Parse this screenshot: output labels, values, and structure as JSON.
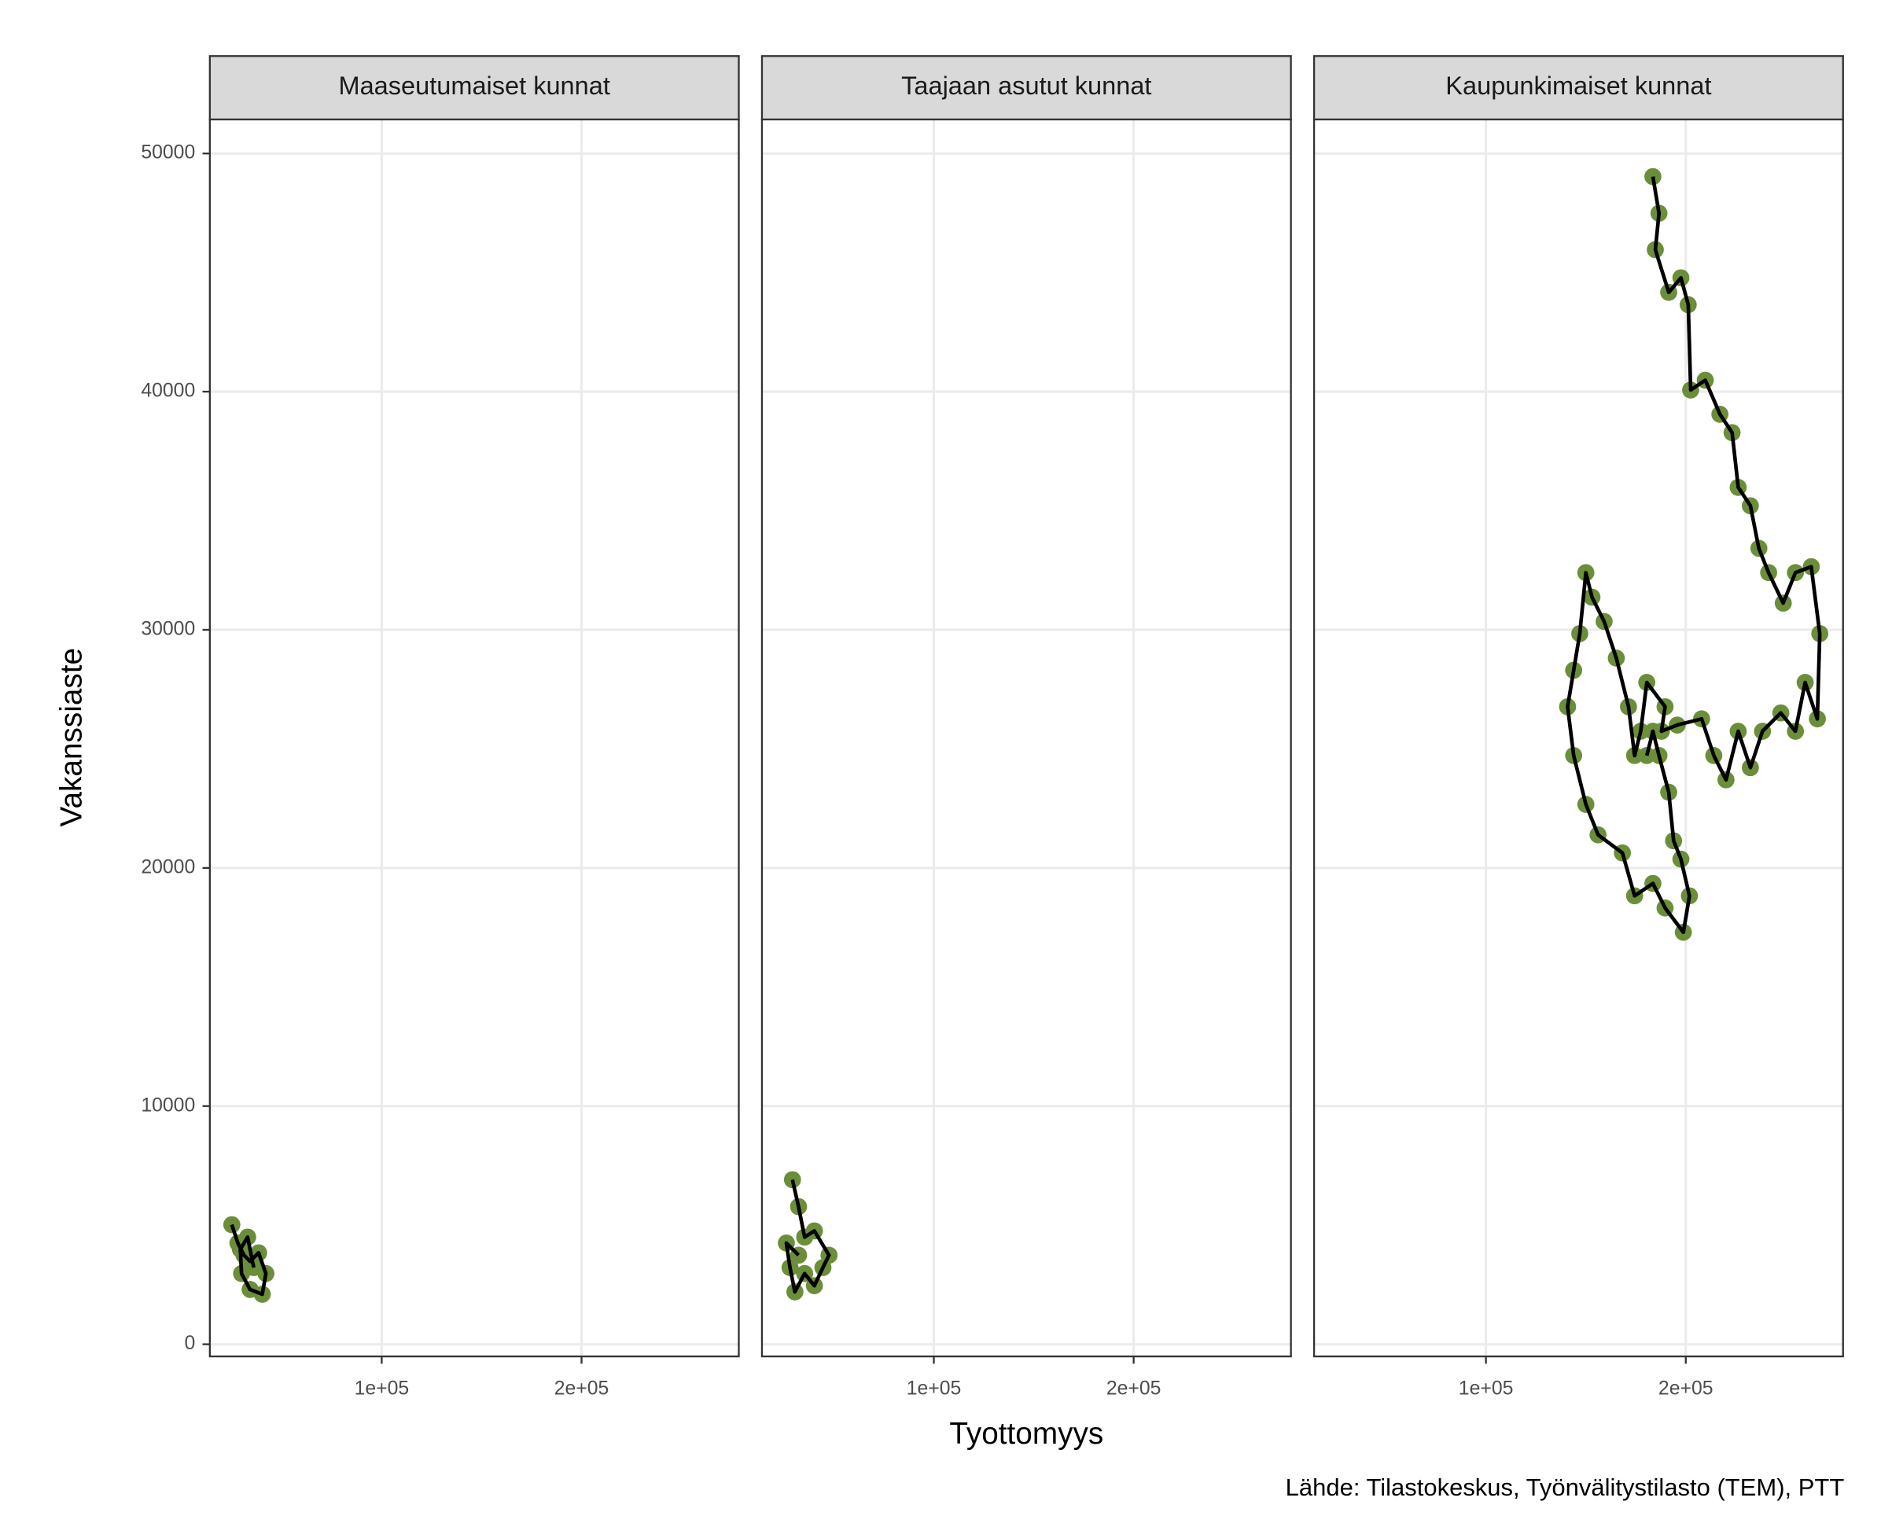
{
  "chart_data": [
    {
      "type": "scatter",
      "title": "Maaseutumaiset kunnat",
      "color": "#6b8e3a",
      "line_color": "#000000",
      "x": [
        25000,
        28050,
        31100,
        34150,
        38420,
        42070,
        40240,
        34150,
        29880,
        29270,
        32930,
        35980
      ],
      "values": [
        5020,
        4250,
        3740,
        3480,
        3840,
        2970,
        2100,
        2300,
        2970,
        3990,
        4500,
        3220
      ],
      "xlim": [
        14000,
        278700
      ],
      "ylim": [
        -510,
        51430
      ],
      "xticks": [
        {
          "value": 100000,
          "label": "1e+05"
        },
        {
          "value": 200000,
          "label": "2e+05"
        }
      ],
      "yticks": [
        0,
        10000,
        20000,
        30000,
        40000,
        50000
      ],
      "grid": true
    },
    {
      "type": "scatter",
      "title": "Taajaan asutut kunnat",
      "color": "#6b8e3a",
      "line_color": "#000000",
      "x": [
        29270,
        32320,
        35370,
        40240,
        47560,
        44510,
        40240,
        35370,
        30490,
        28050,
        26220,
        32320
      ],
      "values": [
        6910,
        5780,
        4500,
        4760,
        3740,
        3220,
        2460,
        2970,
        2200,
        3220,
        4250,
        3740
      ],
      "xlim": [
        14000,
        278700
      ],
      "ylim": [
        -510,
        51430
      ],
      "xticks": [
        {
          "value": 100000,
          "label": "1e+05"
        },
        {
          "value": 200000,
          "label": "2e+05"
        }
      ],
      "yticks": [
        0,
        10000,
        20000,
        30000,
        40000,
        50000
      ],
      "grid": true
    },
    {
      "type": "scatter",
      "title": "Kaupunkimaiset kunnat",
      "color": "#6b8e3a",
      "line_color": "#000000",
      "x": [
        183537,
        186585,
        184756,
        191463,
        197561,
        201220,
        202439,
        209756,
        217073,
        223171,
        226220,
        232317,
        236585,
        241463,
        248780,
        254878,
        262805,
        267073,
        265854,
        259756,
        254878,
        247561,
        238415,
        232317,
        226220,
        220122,
        214024,
        207927,
        195732,
        187805,
        189634,
        180488,
        177439,
        174390,
        171341,
        165244,
        159146,
        153049,
        150000,
        146951,
        143902,
        140854,
        143902,
        150000,
        156098,
        168293,
        174390,
        183537,
        189634,
        198780,
        201829,
        197561,
        193902,
        191463,
        186585,
        183537,
        180488
      ],
      "values": [
        49030,
        47490,
        45960,
        44170,
        44780,
        43650,
        40070,
        40480,
        39050,
        38280,
        35980,
        35210,
        33420,
        32400,
        31120,
        32400,
        32650,
        29840,
        26260,
        27790,
        25740,
        26510,
        25740,
        24210,
        25740,
        23700,
        24720,
        26260,
        26000,
        25740,
        26770,
        27790,
        25740,
        24720,
        26770,
        28810,
        30350,
        31370,
        32400,
        29840,
        28300,
        26770,
        24720,
        22670,
        21390,
        20630,
        18830,
        19350,
        18320,
        17300,
        18830,
        20370,
        21140,
        23180,
        24720,
        25740,
        24720
      ],
      "xlim": [
        14000,
        278700
      ],
      "ylim": [
        -510,
        51430
      ],
      "xticks": [
        {
          "value": 100000,
          "label": "1e+05"
        },
        {
          "value": 200000,
          "label": "2e+05"
        }
      ],
      "yticks": [
        0,
        10000,
        20000,
        30000,
        40000,
        50000
      ],
      "grid": true
    }
  ],
  "x_label": "Tyottomyys",
  "y_label": "Vakanssiaste",
  "caption": "Lähde: Tilastokeskus, Työnvälitystilasto (TEM), PTT"
}
